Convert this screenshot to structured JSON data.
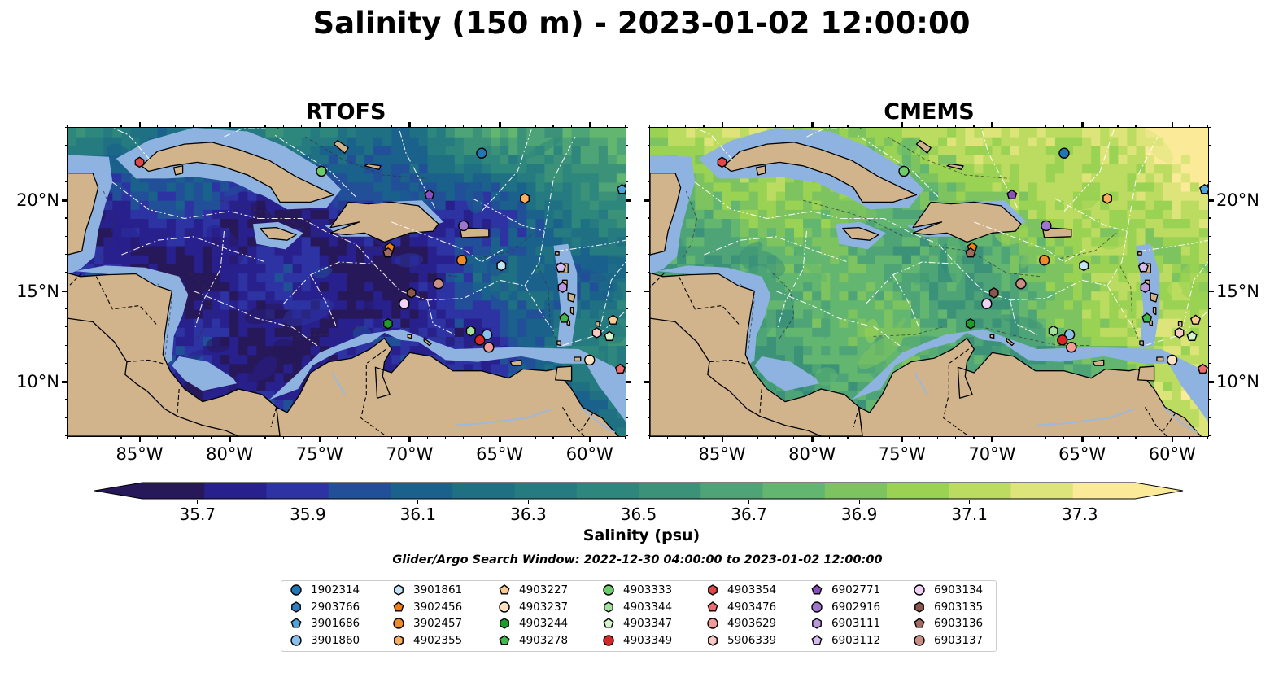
{
  "title": "Salinity (150 m) - 2023-01-02 12:00:00",
  "panels": [
    {
      "title": "RTOFS",
      "variant": "rtofs"
    },
    {
      "title": "CMEMS",
      "variant": "cmems"
    }
  ],
  "map": {
    "lon_range": [
      -89,
      -58
    ],
    "lat_range": [
      7,
      24
    ],
    "lon_ticks": [
      "85°W",
      "80°W",
      "75°W",
      "70°W",
      "65°W",
      "60°W"
    ],
    "lon_tick_values": [
      -85,
      -80,
      -75,
      -70,
      -65,
      -60
    ],
    "lat_ticks": [
      "20°N",
      "15°N",
      "10°N"
    ],
    "lat_tick_values": [
      20,
      15,
      10
    ],
    "land_color": "#d2b48c",
    "shelf_color": "#8fb3e0"
  },
  "colorbar": {
    "label": "Salinity (psu)",
    "min": 35.6,
    "max": 37.4,
    "ticks": [
      "35.7",
      "35.9",
      "36.1",
      "36.3",
      "36.5",
      "36.7",
      "36.9",
      "37.1",
      "37.3"
    ],
    "tick_values": [
      35.7,
      35.9,
      36.1,
      36.3,
      36.5,
      36.7,
      36.9,
      37.1,
      37.3
    ],
    "colors": [
      "#27185a",
      "#28208d",
      "#2d33a3",
      "#214f98",
      "#1a628c",
      "#1e7082",
      "#257b80",
      "#2e877d",
      "#3b9278",
      "#4ea476",
      "#62b66f",
      "#7dc35f",
      "#9ad253",
      "#bbdc60",
      "#dde57a",
      "#fbeb99"
    ],
    "extend": "both"
  },
  "search_window": "Glider/Argo Search Window: 2022-12-30 04:00:00 to 2023-01-02 12:00:00",
  "platforms": [
    {
      "id": "1902314",
      "marker": "circle",
      "color": "#1f77b4",
      "lon": -66.0,
      "lat": 22.6
    },
    {
      "id": "2903766",
      "marker": "hexagon",
      "color": "#2f7fc1",
      "lon": -58.0,
      "lat": 20.6
    },
    {
      "id": "3901686",
      "marker": "pentagon",
      "color": "#4fa3dc",
      "lon": -58.2,
      "lat": 20.6
    },
    {
      "id": "3901860",
      "marker": "circle",
      "color": "#89c0ec",
      "lon": -65.7,
      "lat": 12.6
    },
    {
      "id": "3901861",
      "marker": "hexagon",
      "color": "#c6e4f8",
      "lon": -64.9,
      "lat": 16.4
    },
    {
      "id": "3902456",
      "marker": "pentagon",
      "color": "#f07f10",
      "lon": -71.1,
      "lat": 17.4
    },
    {
      "id": "3902457",
      "marker": "circle",
      "color": "#f08a28",
      "lon": -67.1,
      "lat": 16.7
    },
    {
      "id": "4902355",
      "marker": "hexagon",
      "color": "#f9ae62",
      "lon": -63.6,
      "lat": 20.1
    },
    {
      "id": "4903227",
      "marker": "pentagon",
      "color": "#fcc98f",
      "lon": -58.7,
      "lat": 13.4
    },
    {
      "id": "4903237",
      "marker": "circle",
      "color": "#fde3c4",
      "lon": -60.0,
      "lat": 11.2
    },
    {
      "id": "4903244",
      "marker": "hexagon",
      "color": "#1f9c2c",
      "lon": -71.2,
      "lat": 13.2
    },
    {
      "id": "4903278",
      "marker": "pentagon",
      "color": "#41b84c",
      "lon": -61.4,
      "lat": 13.5
    },
    {
      "id": "4903333",
      "marker": "circle",
      "color": "#6ccb6a",
      "lon": -74.9,
      "lat": 21.6
    },
    {
      "id": "4903344",
      "marker": "hexagon",
      "color": "#a3e29c",
      "lon": -66.6,
      "lat": 12.8
    },
    {
      "id": "4903347",
      "marker": "pentagon",
      "color": "#d3f5c9",
      "lon": -58.9,
      "lat": 12.5
    },
    {
      "id": "4903349",
      "marker": "circle",
      "color": "#d62728",
      "lon": -66.1,
      "lat": 12.3
    },
    {
      "id": "4903354",
      "marker": "hexagon",
      "color": "#e04848",
      "lon": -85.0,
      "lat": 22.1
    },
    {
      "id": "4903476",
      "marker": "pentagon",
      "color": "#ec6d70",
      "lon": -58.3,
      "lat": 10.7
    },
    {
      "id": "4903629",
      "marker": "circle",
      "color": "#f29c9a",
      "lon": -65.6,
      "lat": 11.9
    },
    {
      "id": "5906339",
      "marker": "hexagon",
      "color": "#f9c9c6",
      "lon": -59.6,
      "lat": 12.7
    },
    {
      "id": "6902771",
      "marker": "pentagon",
      "color": "#8a4fbf",
      "lon": -68.9,
      "lat": 20.3
    },
    {
      "id": "6902916",
      "marker": "circle",
      "color": "#9e76cc",
      "lon": -67.0,
      "lat": 18.6
    },
    {
      "id": "6903111",
      "marker": "hexagon",
      "color": "#b999dc",
      "lon": -61.5,
      "lat": 15.2
    },
    {
      "id": "6903112",
      "marker": "pentagon",
      "color": "#d5bdf0",
      "lon": -61.6,
      "lat": 16.3
    },
    {
      "id": "6903134",
      "marker": "circle",
      "color": "#f1d1f6",
      "lon": -70.3,
      "lat": 14.3
    },
    {
      "id": "6903135",
      "marker": "hexagon",
      "color": "#8c564b",
      "lon": -69.9,
      "lat": 14.9
    },
    {
      "id": "6903136",
      "marker": "pentagon",
      "color": "#a36b5e",
      "lon": -71.2,
      "lat": 17.1
    },
    {
      "id": "6903137",
      "marker": "circle",
      "color": "#c98f84",
      "lon": -68.4,
      "lat": 15.4
    }
  ]
}
